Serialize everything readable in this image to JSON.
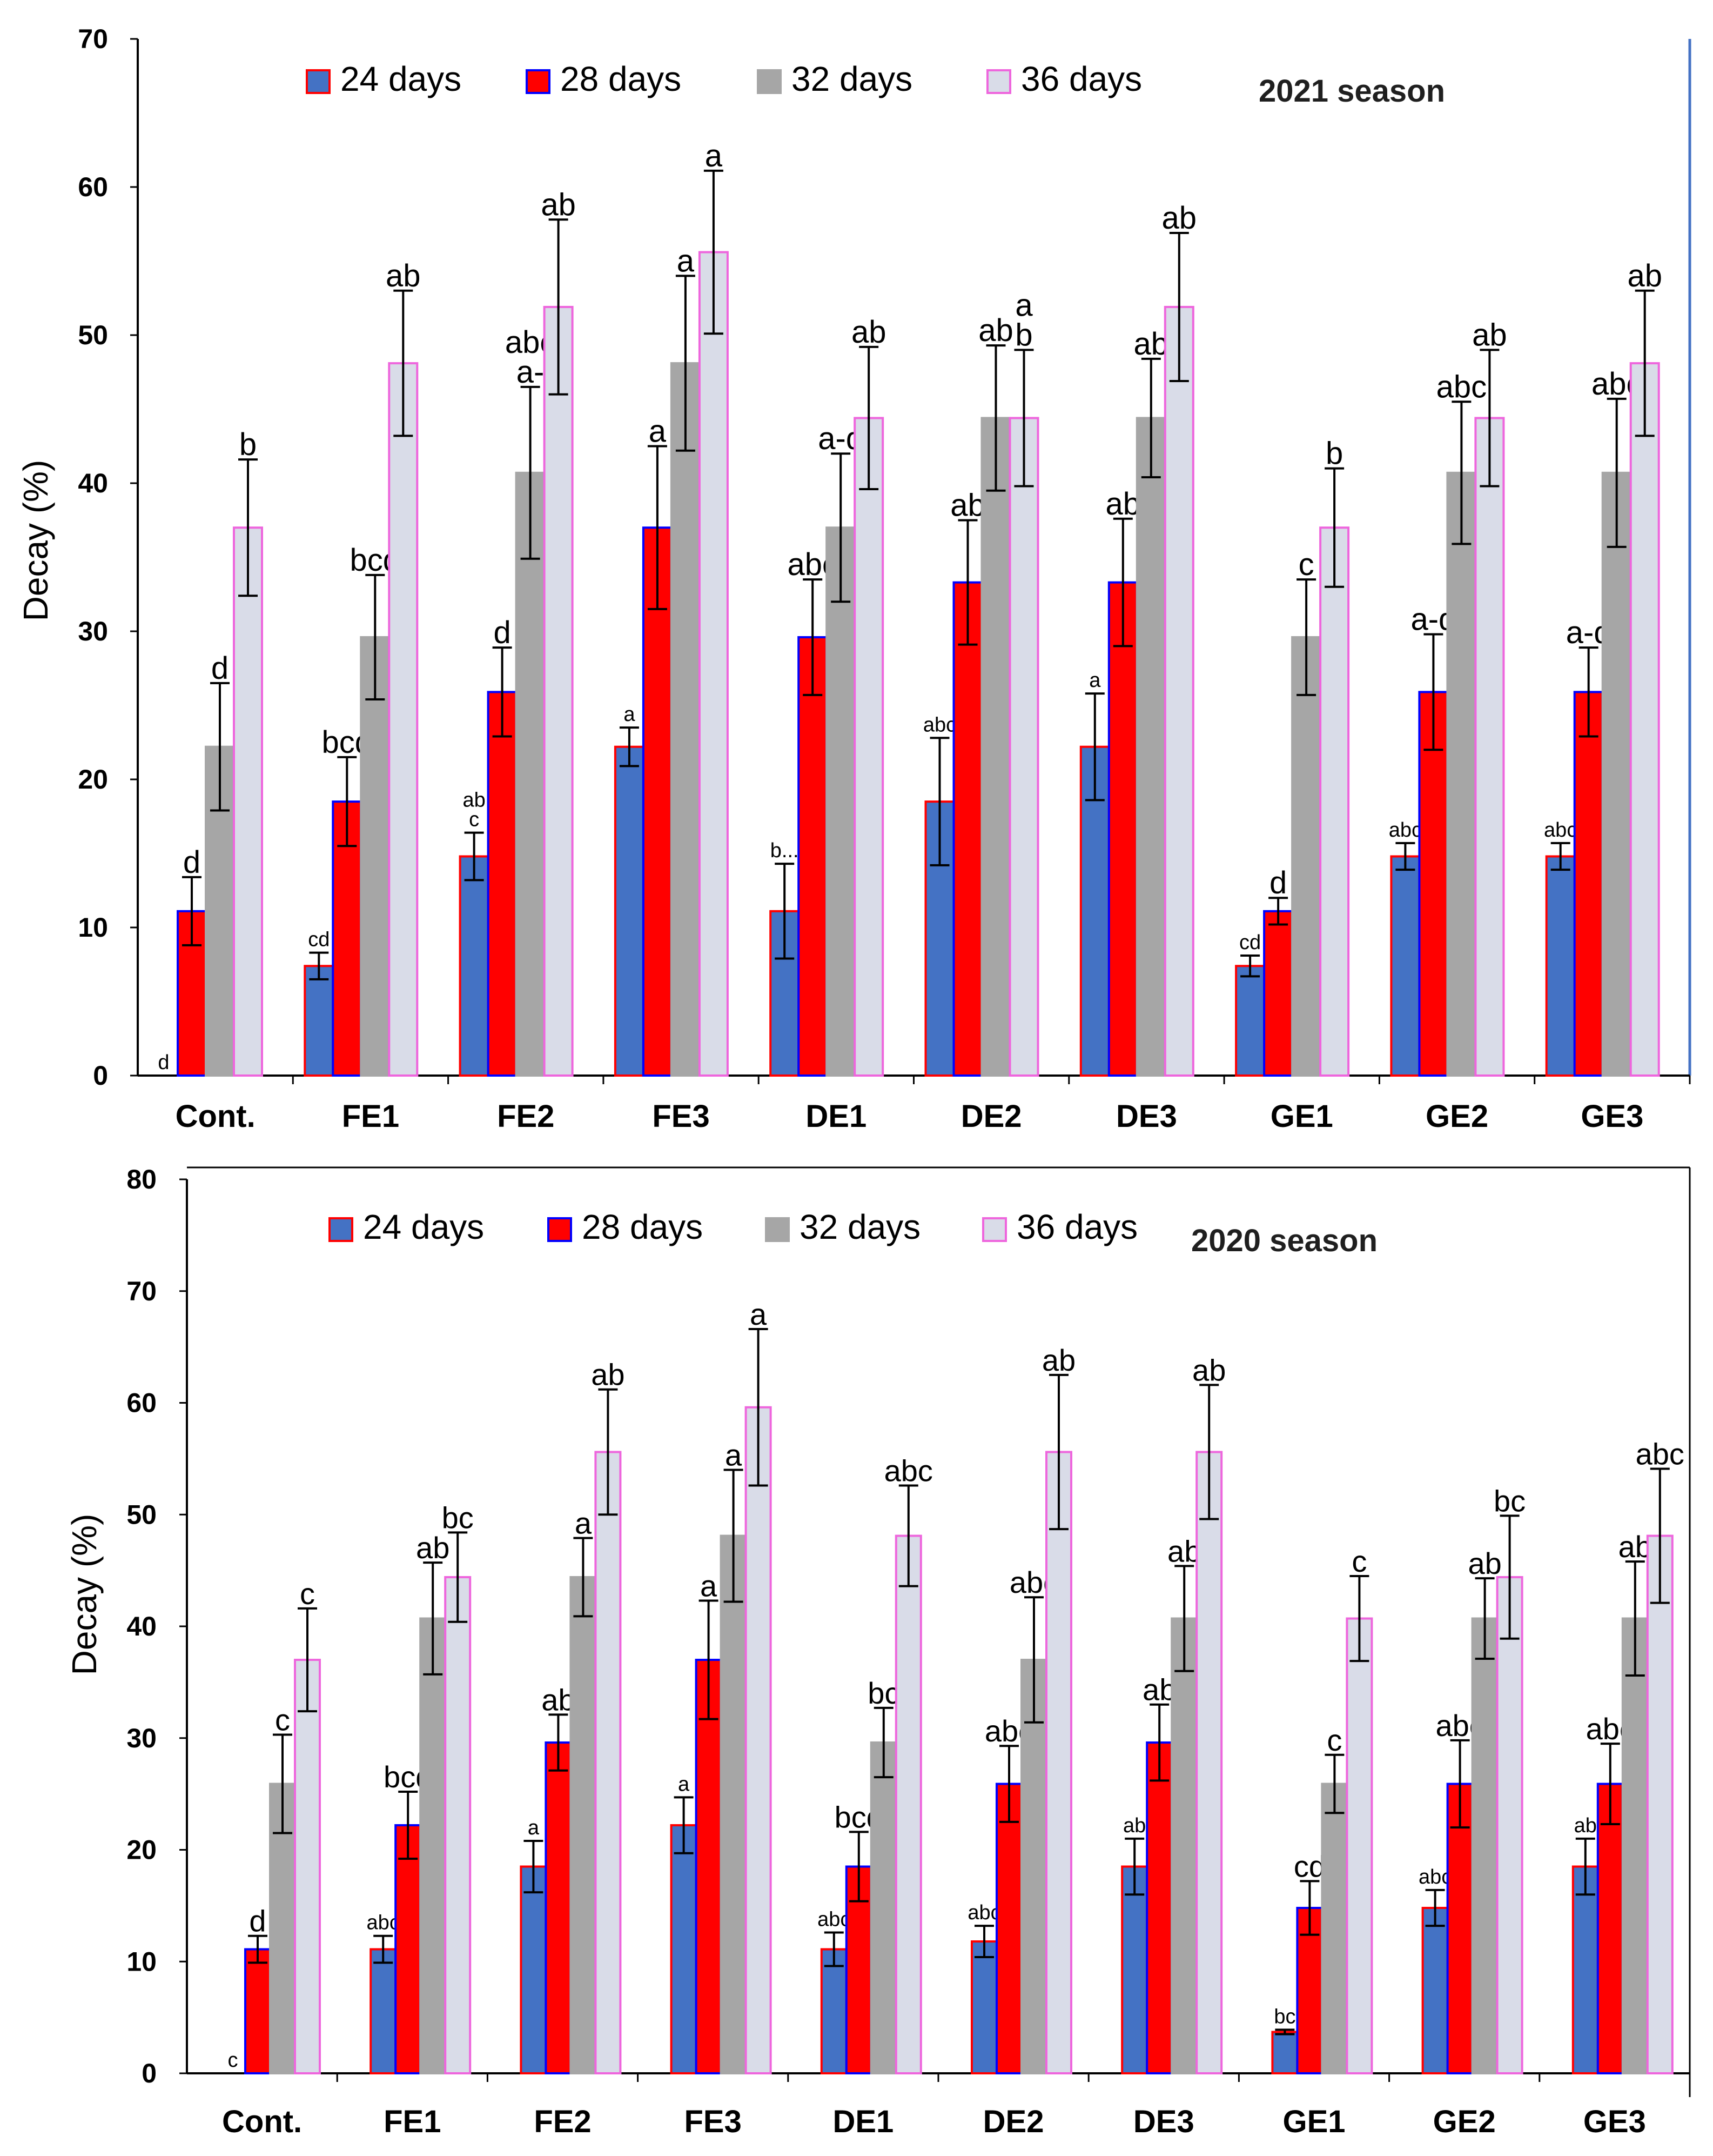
{
  "chart_data": [
    {
      "type": "bar",
      "title": "2021 season",
      "xlabel": "",
      "ylabel": "Decay (%)",
      "ylim": [
        0,
        70
      ],
      "yticks": [
        "0",
        "10",
        "20",
        "30",
        "40",
        "50",
        "60",
        "70"
      ],
      "categories": [
        "Cont.",
        "FE1",
        "FE2",
        "FE3",
        "DE1",
        "DE2",
        "DE3",
        "GE1",
        "GE2",
        "GE3"
      ],
      "series": [
        {
          "name": "24 days",
          "color": "#4472c4",
          "border": "#ff0000",
          "values": [
            0,
            7.4,
            14.8,
            22.2,
            11.1,
            18.5,
            22.2,
            7.4,
            14.8,
            14.8
          ],
          "errors": [
            0,
            0.9,
            1.6,
            1.3,
            3.2,
            4.3,
            3.6,
            0.7,
            0.9,
            0.9
          ],
          "labels": [
            "d",
            "cd",
            "ab\nc",
            "a",
            "b...",
            "abc",
            "a",
            "cd",
            "abc",
            "abc"
          ]
        },
        {
          "name": "28 days",
          "color": "#ff0000",
          "border": "#0000ff",
          "values": [
            11.1,
            18.5,
            25.9,
            37.0,
            29.6,
            33.3,
            33.3,
            11.1,
            25.9,
            25.9
          ],
          "errors": [
            2.3,
            3.0,
            3.0,
            5.5,
            3.9,
            4.2,
            4.3,
            0.9,
            3.9,
            3.0
          ],
          "labels": [
            "d",
            "bcd",
            "d",
            "a",
            "abc",
            "ab",
            "ab",
            "d",
            "a-d",
            "a-d"
          ]
        },
        {
          "name": "32 days",
          "color": "#a6a6a6",
          "border": "#a6a6a6",
          "values": [
            22.2,
            29.6,
            40.7,
            48.1,
            37.0,
            44.4,
            44.4,
            29.6,
            40.7,
            40.7
          ],
          "errors": [
            4.3,
            4.2,
            5.8,
            5.9,
            5.0,
            4.9,
            4.0,
            3.9,
            4.8,
            5.0
          ],
          "labels": [
            "d",
            "bcd",
            "abc\na-",
            "a",
            "a-d",
            "ab",
            "ab",
            "c",
            "abc",
            "abc"
          ]
        },
        {
          "name": "36 days",
          "color": "#d9dce8",
          "border": "#ee66dd",
          "values": [
            37.0,
            48.1,
            51.9,
            55.6,
            44.4,
            44.4,
            51.9,
            37.0,
            44.4,
            48.1
          ],
          "errors": [
            4.6,
            4.9,
            5.9,
            5.5,
            4.8,
            4.6,
            5.0,
            4.0,
            4.6,
            4.9
          ],
          "labels": [
            "b",
            "ab",
            "ab",
            "a",
            "ab",
            "a\nb",
            "ab",
            "b",
            "ab",
            "ab"
          ]
        }
      ],
      "legend": [
        "24 days",
        "28 days",
        "32 days",
        "36 days"
      ],
      "legend_position": "top"
    },
    {
      "type": "bar",
      "title": "2020 season",
      "xlabel": "",
      "ylabel": "Decay (%)",
      "ylim": [
        0,
        80
      ],
      "yticks": [
        "0",
        "10",
        "20",
        "30",
        "40",
        "50",
        "60",
        "70",
        "80"
      ],
      "categories": [
        "Cont.",
        "FE1",
        "FE2",
        "FE3",
        "DE1",
        "DE2",
        "DE3",
        "GE1",
        "GE2",
        "GE3"
      ],
      "series": [
        {
          "name": "24 days",
          "color": "#4472c4",
          "border": "#ff0000",
          "values": [
            0,
            11.1,
            18.5,
            22.2,
            11.1,
            11.8,
            18.5,
            3.7,
            14.8,
            18.5
          ],
          "errors": [
            0,
            1.2,
            2.3,
            2.5,
            1.5,
            1.4,
            2.5,
            0.2,
            1.6,
            2.5
          ],
          "labels": [
            "c",
            "abc",
            "a",
            "a",
            "abc",
            "abc",
            "ab",
            "bc",
            "abc",
            "ab"
          ]
        },
        {
          "name": "28 days",
          "color": "#ff0000",
          "border": "#0000ff",
          "values": [
            11.1,
            22.2,
            29.6,
            37.0,
            18.5,
            25.9,
            29.6,
            14.8,
            25.9,
            25.9
          ],
          "errors": [
            1.2,
            3.0,
            2.5,
            5.3,
            3.1,
            3.4,
            3.4,
            2.4,
            3.9,
            3.6
          ],
          "labels": [
            "d",
            "bcd",
            "ab",
            "a",
            "bcd",
            "abc",
            "ab",
            "cd",
            "abc",
            "abc"
          ]
        },
        {
          "name": "32 days",
          "color": "#a6a6a6",
          "border": "#a6a6a6",
          "values": [
            25.9,
            40.7,
            44.4,
            48.1,
            29.6,
            37.0,
            40.7,
            25.9,
            40.7,
            40.7
          ],
          "errors": [
            4.4,
            5.0,
            3.5,
            5.9,
            3.1,
            5.6,
            4.7,
            2.6,
            3.6,
            5.1
          ],
          "labels": [
            "c",
            "ab",
            "a",
            "a",
            "bc",
            "abc",
            "ab",
            "c",
            "ab",
            "ab"
          ]
        },
        {
          "name": "36 days",
          "color": "#d9dce8",
          "border": "#ee66dd",
          "values": [
            37.0,
            44.4,
            55.6,
            59.6,
            48.1,
            55.6,
            55.6,
            40.7,
            44.4,
            48.1
          ],
          "errors": [
            4.6,
            4.0,
            5.6,
            7.0,
            4.5,
            6.9,
            6.0,
            3.8,
            5.5,
            6.0
          ],
          "labels": [
            "c",
            "bc",
            "ab",
            "a",
            "abc",
            "ab",
            "ab",
            "c",
            "bc",
            "abc"
          ]
        }
      ],
      "legend": [
        "24 days",
        "28 days",
        "32 days",
        "36 days"
      ],
      "legend_position": "top"
    }
  ]
}
